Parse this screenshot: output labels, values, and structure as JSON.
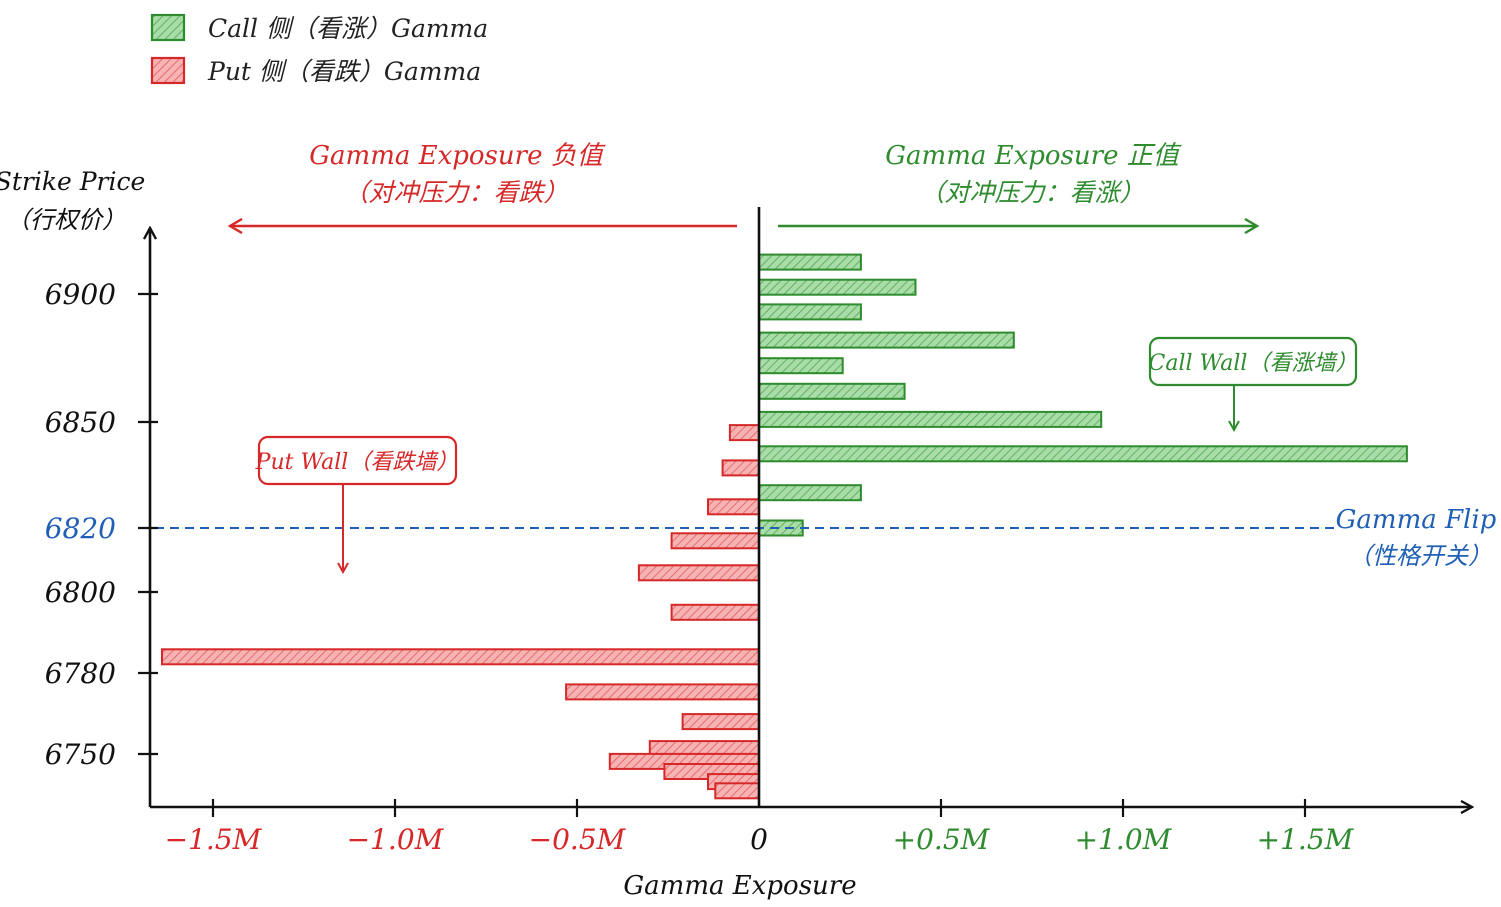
{
  "chart_data": {
    "type": "bar",
    "orientation": "horizontal",
    "legend": {
      "placement": "top-left",
      "items": [
        {
          "label": "Call 侧（看涨）Gamma",
          "color": "#2e8b2e",
          "fill": "#8fd18f"
        },
        {
          "label": "Put 侧（看跌）Gamma",
          "color": "#d62828",
          "fill": "#f28b8b"
        }
      ]
    },
    "ylabel": [
      "Strike Price",
      "（行权价）"
    ],
    "xlabel": "Gamma Exposure",
    "ylim": [
      6740,
      6925
    ],
    "xlim": [
      -1.65,
      1.8
    ],
    "y_ticks": [
      {
        "value": 6900,
        "label": "6900",
        "color": "#111111"
      },
      {
        "value": 6850,
        "label": "6850",
        "color": "#111111"
      },
      {
        "value": 6820,
        "label": "6820",
        "color": "#1f5fb5"
      },
      {
        "value": 6800,
        "label": "6800",
        "color": "#111111"
      },
      {
        "value": 6780,
        "label": "6780",
        "color": "#111111"
      },
      {
        "value": 6750,
        "label": "6750",
        "color": "#111111"
      }
    ],
    "x_ticks": [
      {
        "value": -1.5,
        "label": "−1.5M",
        "color": "#d62828"
      },
      {
        "value": -1.0,
        "label": "−1.0M",
        "color": "#d62828"
      },
      {
        "value": -0.5,
        "label": "−0.5M",
        "color": "#d62828"
      },
      {
        "value": 0,
        "label": "0",
        "color": "#111111"
      },
      {
        "value": 0.5,
        "label": "+0.5M",
        "color": "#2e8b2e"
      },
      {
        "value": 1.0,
        "label": "+1.0M",
        "color": "#2e8b2e"
      },
      {
        "value": 1.5,
        "label": "+1.5M",
        "color": "#2e8b2e"
      }
    ],
    "series": [
      {
        "name": "Call 侧（看涨）Gamma",
        "color": "#2e8b2e",
        "fill": "#8fd18f",
        "points": [
          {
            "strike": 6914,
            "value": 0.28
          },
          {
            "strike": 6903,
            "value": 0.43
          },
          {
            "strike": 6893,
            "value": 0.28
          },
          {
            "strike": 6882,
            "value": 0.7
          },
          {
            "strike": 6872,
            "value": 0.23
          },
          {
            "strike": 6862,
            "value": 0.4
          },
          {
            "strike": 6851,
            "value": 0.94
          },
          {
            "strike": 6841,
            "value": 1.78
          },
          {
            "strike": 6830,
            "value": 0.28
          },
          {
            "strike": 6820,
            "value": 0.12
          }
        ]
      },
      {
        "name": "Put 侧（看跌）Gamma",
        "color": "#d62828",
        "fill": "#f28b8b",
        "points": [
          {
            "strike": 6847,
            "value": -0.08
          },
          {
            "strike": 6837,
            "value": -0.1
          },
          {
            "strike": 6826,
            "value": -0.14
          },
          {
            "strike": 6816,
            "value": -0.24
          },
          {
            "strike": 6806,
            "value": -0.33
          },
          {
            "strike": 6795,
            "value": -0.24
          },
          {
            "strike": 6784,
            "value": -1.64
          },
          {
            "strike": 6773,
            "value": -0.53
          },
          {
            "strike": 6762,
            "value": -0.21
          },
          {
            "strike": 6752,
            "value": -0.3
          },
          {
            "strike": 6742,
            "value": -0.41
          },
          {
            "strike": 6731,
            "value": -0.26
          },
          {
            "strike": 6720,
            "value": -0.14
          },
          {
            "strike": 6710,
            "value": -0.12
          }
        ]
      }
    ],
    "gamma_flip": {
      "value": 6820,
      "label": [
        "Gamma Flip",
        "（性格开关）"
      ],
      "color": "#1f5fb5"
    },
    "annotations": {
      "negative": {
        "title": "Gamma Exposure 负值",
        "subtitle": "（对冲压力：看跌）",
        "color": "#d62828"
      },
      "positive": {
        "title": "Gamma Exposure 正值",
        "subtitle": "（对冲压力：看涨）",
        "color": "#2e8b2e"
      },
      "call_wall": {
        "label": "Call Wall（看涨墙）",
        "color": "#2e8b2e"
      },
      "put_wall": {
        "label": "Put Wall（看跌墙）",
        "color": "#d62828"
      }
    }
  }
}
